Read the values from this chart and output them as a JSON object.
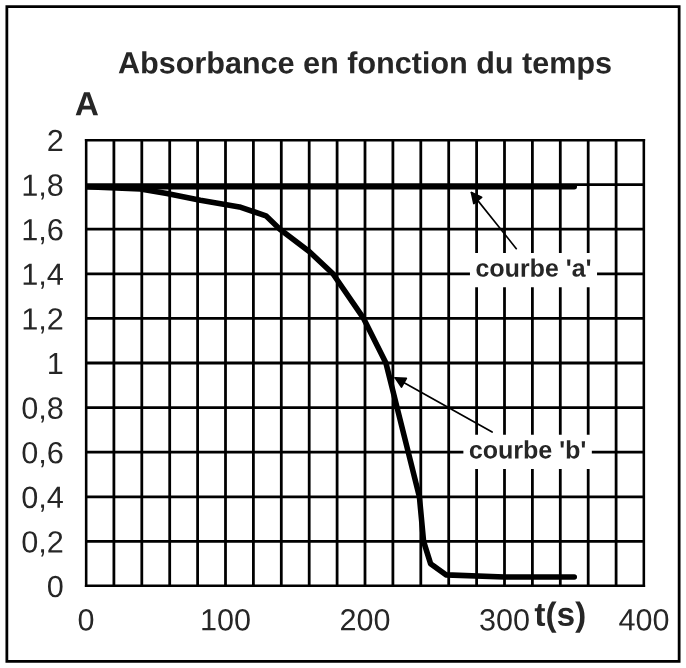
{
  "chart_data": {
    "type": "line",
    "title": "Absorbance en fonction du temps",
    "ylabel": "A",
    "xlabel": "t(s)",
    "series": [
      {
        "x": [
          0,
          350
        ],
        "values": [
          1.79,
          1.79
        ],
        "color": "#000000"
      },
      {
        "x": [
          0,
          39,
          58,
          82,
          110,
          129,
          139,
          160,
          177,
          199,
          215,
          223,
          231,
          239,
          242,
          247,
          258,
          300,
          350
        ],
        "values": [
          1.79,
          1.78,
          1.76,
          1.73,
          1.7,
          1.66,
          1.6,
          1.5,
          1.4,
          1.2,
          1.0,
          0.8,
          0.6,
          0.4,
          0.2,
          0.1,
          0.05,
          0.04,
          0.04
        ],
        "color": "#000000"
      }
    ],
    "annotations": [
      {
        "text": "courbe 'a'",
        "x": 273,
        "y": 1.79
      },
      {
        "text": "courbe 'b'",
        "x": 217,
        "y": 0.95
      }
    ],
    "xlim": [
      0,
      400
    ],
    "ylim": [
      0,
      2
    ],
    "xticks": [
      0,
      {
        "value": 20,
        "label": null
      },
      {
        "value": 40,
        "label": null
      },
      {
        "value": 60,
        "label": null
      },
      {
        "value": 80,
        "label": null
      },
      100,
      {
        "value": 120,
        "label": null
      },
      {
        "value": 140,
        "label": null
      },
      {
        "value": 160,
        "label": null
      },
      {
        "value": 180,
        "label": null
      },
      200,
      {
        "value": 220,
        "label": null
      },
      {
        "value": 240,
        "label": null
      },
      {
        "value": 260,
        "label": null
      },
      {
        "value": 280,
        "label": null
      },
      300,
      {
        "value": 320,
        "label": null
      },
      {
        "value": 340,
        "label": null
      },
      {
        "value": 360,
        "label": null
      },
      {
        "value": 380,
        "label": null
      },
      400
    ],
    "yticks": [
      0,
      {
        "value": 0.2,
        "label": "0,2"
      },
      {
        "value": 0.4,
        "label": "0,4"
      },
      {
        "value": 0.6,
        "label": "0,6"
      },
      {
        "value": 0.8,
        "label": "0,8"
      },
      1,
      {
        "value": 1.2,
        "label": "1,2"
      },
      {
        "value": 1.4,
        "label": "1,4"
      },
      {
        "value": 1.6,
        "label": "1,6"
      },
      {
        "value": 1.8,
        "label": "1,8"
      },
      2
    ],
    "grid": true,
    "line_style": "solid"
  }
}
